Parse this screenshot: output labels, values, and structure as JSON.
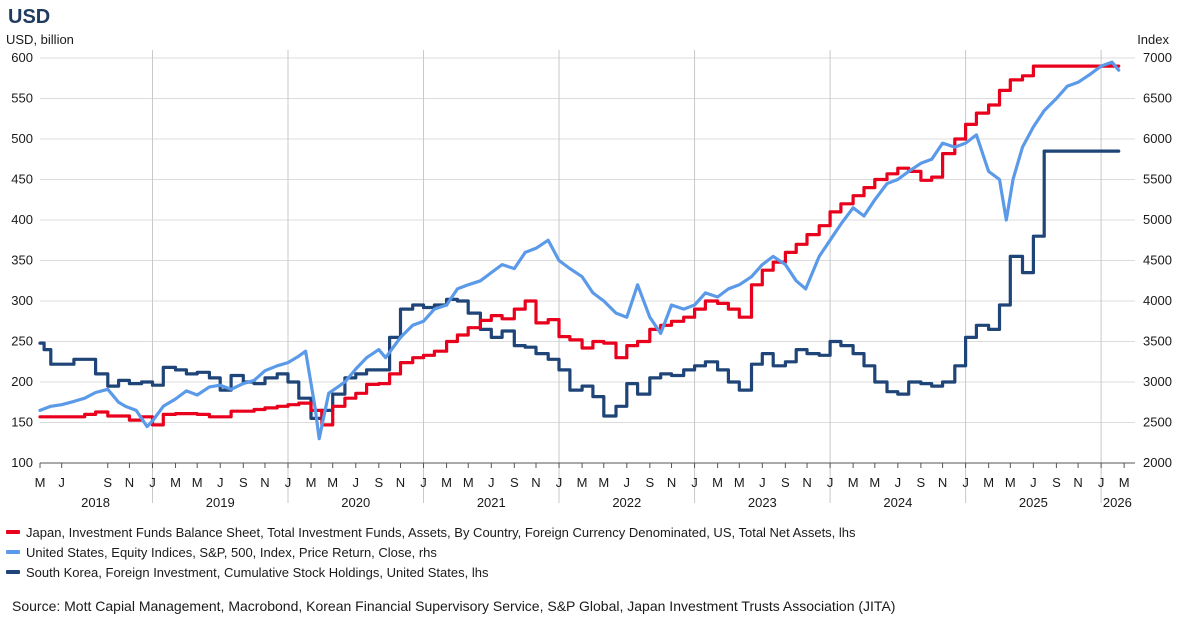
{
  "chart_data": {
    "type": "line",
    "title": "USD",
    "ylabel": "USD, billion",
    "y2label": "Index",
    "ylim": [
      100,
      600
    ],
    "y2lim": [
      2000,
      7000
    ],
    "yticks": [
      100,
      150,
      200,
      250,
      300,
      350,
      400,
      450,
      500,
      550,
      600
    ],
    "y2ticks": [
      2000,
      2500,
      3000,
      3500,
      4000,
      4500,
      5000,
      5500,
      6000,
      6500,
      7000
    ],
    "xlim": [
      2018.17,
      2026.25
    ],
    "grid": true,
    "month_ticks": [
      {
        "label": "M",
        "x": 2018.17
      },
      {
        "label": "J",
        "x": 2018.33
      },
      {
        "label": "S",
        "x": 2018.67
      },
      {
        "label": "N",
        "x": 2018.83
      },
      {
        "label": "J",
        "x": 2019.0
      },
      {
        "label": "M",
        "x": 2019.17
      },
      {
        "label": "M",
        "x": 2019.33
      },
      {
        "label": "J",
        "x": 2019.5
      },
      {
        "label": "S",
        "x": 2019.67
      },
      {
        "label": "N",
        "x": 2019.83
      },
      {
        "label": "J",
        "x": 2020.0
      },
      {
        "label": "M",
        "x": 2020.17
      },
      {
        "label": "M",
        "x": 2020.33
      },
      {
        "label": "J",
        "x": 2020.5
      },
      {
        "label": "S",
        "x": 2020.67
      },
      {
        "label": "N",
        "x": 2020.83
      },
      {
        "label": "J",
        "x": 2021.0
      },
      {
        "label": "M",
        "x": 2021.17
      },
      {
        "label": "M",
        "x": 2021.33
      },
      {
        "label": "J",
        "x": 2021.5
      },
      {
        "label": "S",
        "x": 2021.67
      },
      {
        "label": "N",
        "x": 2021.83
      },
      {
        "label": "J",
        "x": 2022.0
      },
      {
        "label": "M",
        "x": 2022.17
      },
      {
        "label": "M",
        "x": 2022.33
      },
      {
        "label": "J",
        "x": 2022.5
      },
      {
        "label": "S",
        "x": 2022.67
      },
      {
        "label": "N",
        "x": 2022.83
      },
      {
        "label": "J",
        "x": 2023.0
      },
      {
        "label": "M",
        "x": 2023.17
      },
      {
        "label": "M",
        "x": 2023.33
      },
      {
        "label": "J",
        "x": 2023.5
      },
      {
        "label": "S",
        "x": 2023.67
      },
      {
        "label": "N",
        "x": 2023.83
      },
      {
        "label": "J",
        "x": 2024.0
      },
      {
        "label": "M",
        "x": 2024.17
      },
      {
        "label": "M",
        "x": 2024.33
      },
      {
        "label": "J",
        "x": 2024.5
      },
      {
        "label": "S",
        "x": 2024.67
      },
      {
        "label": "N",
        "x": 2024.83
      },
      {
        "label": "J",
        "x": 2025.0
      },
      {
        "label": "M",
        "x": 2025.17
      },
      {
        "label": "M",
        "x": 2025.33
      },
      {
        "label": "J",
        "x": 2025.5
      },
      {
        "label": "S",
        "x": 2025.67
      },
      {
        "label": "N",
        "x": 2025.83
      },
      {
        "label": "J",
        "x": 2026.0
      },
      {
        "label": "M",
        "x": 2026.17
      }
    ],
    "year_labels": [
      {
        "label": "2018",
        "x": 2018.58
      },
      {
        "label": "2019",
        "x": 2019.5
      },
      {
        "label": "2020",
        "x": 2020.5
      },
      {
        "label": "2021",
        "x": 2021.5
      },
      {
        "label": "2022",
        "x": 2022.5
      },
      {
        "label": "2023",
        "x": 2023.5
      },
      {
        "label": "2024",
        "x": 2024.5
      },
      {
        "label": "2025",
        "x": 2025.5
      },
      {
        "label": "2026",
        "x": 2026.12
      }
    ],
    "year_gridlines": [
      2019.0,
      2020.0,
      2021.0,
      2022.0,
      2023.0,
      2024.0,
      2025.0,
      2026.0
    ],
    "series": [
      {
        "name": "Japan, Investment Funds Balance Sheet, Total Investment Funds, Assets, By Country, Foreign Currency Denominated, US, Total Net Assets, lhs",
        "axis": "left",
        "color": "#e8001c",
        "step": true,
        "x": [
          2018.17,
          2018.5,
          2018.58,
          2018.67,
          2018.83,
          2018.92,
          2019.0,
          2019.08,
          2019.17,
          2019.33,
          2019.42,
          2019.58,
          2019.67,
          2019.75,
          2019.83,
          2019.92,
          2020.0,
          2020.08,
          2020.17,
          2020.25,
          2020.33,
          2020.42,
          2020.5,
          2020.58,
          2020.67,
          2020.75,
          2020.83,
          2020.92,
          2021.0,
          2021.08,
          2021.17,
          2021.25,
          2021.33,
          2021.42,
          2021.5,
          2021.58,
          2021.67,
          2021.75,
          2021.83,
          2021.92,
          2022.0,
          2022.08,
          2022.17,
          2022.25,
          2022.33,
          2022.42,
          2022.5,
          2022.58,
          2022.67,
          2022.75,
          2022.83,
          2022.92,
          2023.0,
          2023.08,
          2023.17,
          2023.25,
          2023.33,
          2023.42,
          2023.5,
          2023.58,
          2023.67,
          2023.75,
          2023.83,
          2023.92,
          2024.0,
          2024.08,
          2024.17,
          2024.25,
          2024.33,
          2024.42,
          2024.5,
          2024.58,
          2024.67,
          2024.75,
          2024.83,
          2024.92,
          2025.0,
          2025.08,
          2025.17,
          2025.25,
          2025.33,
          2025.42,
          2025.5,
          2025.58,
          2025.67,
          2025.75,
          2025.83,
          2025.92,
          2026.0,
          2026.08,
          2026.13
        ],
        "values": [
          157,
          160,
          163,
          158,
          153,
          157,
          147,
          160,
          161,
          160,
          157,
          164,
          164,
          166,
          168,
          170,
          172,
          174,
          165,
          147,
          170,
          180,
          186,
          197,
          198,
          210,
          224,
          230,
          233,
          238,
          250,
          258,
          267,
          276,
          282,
          278,
          290,
          300,
          273,
          277,
          256,
          252,
          242,
          250,
          248,
          230,
          245,
          250,
          265,
          270,
          275,
          280,
          290,
          300,
          297,
          290,
          280,
          320,
          338,
          348,
          360,
          370,
          382,
          393,
          410,
          420,
          430,
          440,
          450,
          457,
          464,
          460,
          449,
          453,
          482,
          500,
          518,
          532,
          542,
          560,
          573,
          578,
          590,
          590,
          590,
          590,
          590,
          590,
          590,
          590,
          590
        ]
      },
      {
        "name": "United States, Equity Indices, S&P, 500, Index, Price Return, Close, rhs",
        "axis": "right",
        "color": "#5b9ae8",
        "step": false,
        "x": [
          2018.17,
          2018.25,
          2018.33,
          2018.42,
          2018.5,
          2018.58,
          2018.67,
          2018.75,
          2018.8,
          2018.88,
          2018.96,
          2019.0,
          2019.08,
          2019.17,
          2019.25,
          2019.33,
          2019.42,
          2019.5,
          2019.58,
          2019.67,
          2019.75,
          2019.83,
          2019.92,
          2020.0,
          2020.08,
          2020.13,
          2020.2,
          2020.23,
          2020.3,
          2020.42,
          2020.5,
          2020.58,
          2020.67,
          2020.72,
          2020.83,
          2020.92,
          2021.0,
          2021.08,
          2021.17,
          2021.25,
          2021.33,
          2021.42,
          2021.5,
          2021.58,
          2021.67,
          2021.75,
          2021.83,
          2021.92,
          2022.0,
          2022.08,
          2022.17,
          2022.25,
          2022.33,
          2022.42,
          2022.5,
          2022.58,
          2022.67,
          2022.75,
          2022.83,
          2022.92,
          2023.0,
          2023.08,
          2023.17,
          2023.25,
          2023.33,
          2023.42,
          2023.5,
          2023.58,
          2023.67,
          2023.75,
          2023.82,
          2023.92,
          2024.0,
          2024.08,
          2024.17,
          2024.25,
          2024.33,
          2024.42,
          2024.5,
          2024.58,
          2024.67,
          2024.75,
          2024.83,
          2024.92,
          2025.0,
          2025.08,
          2025.17,
          2025.25,
          2025.3,
          2025.35,
          2025.42,
          2025.5,
          2025.58,
          2025.67,
          2025.75,
          2025.83,
          2025.92,
          2026.0,
          2026.08,
          2026.13
        ],
        "values": [
          2650,
          2700,
          2720,
          2760,
          2800,
          2870,
          2910,
          2750,
          2700,
          2650,
          2450,
          2520,
          2700,
          2790,
          2890,
          2840,
          2940,
          2960,
          2910,
          2980,
          3020,
          3140,
          3200,
          3240,
          3320,
          3380,
          2680,
          2300,
          2860,
          3000,
          3160,
          3300,
          3400,
          3300,
          3550,
          3700,
          3750,
          3900,
          3950,
          4150,
          4200,
          4250,
          4350,
          4450,
          4400,
          4600,
          4650,
          4750,
          4500,
          4400,
          4300,
          4100,
          4000,
          3850,
          3800,
          4200,
          3800,
          3600,
          3950,
          3900,
          3950,
          4100,
          4050,
          4150,
          4200,
          4300,
          4450,
          4550,
          4450,
          4250,
          4150,
          4550,
          4750,
          4950,
          5150,
          5050,
          5250,
          5450,
          5500,
          5600,
          5700,
          5750,
          5950,
          5900,
          5950,
          6050,
          5600,
          5500,
          5000,
          5500,
          5900,
          6150,
          6350,
          6500,
          6650,
          6700,
          6800,
          6900,
          6950,
          6850
        ]
      },
      {
        "name": "South Korea, Foreign Investment, Cumulative Stock Holdings, United States, lhs",
        "axis": "left",
        "color": "#1f4477",
        "step": true,
        "x": [
          2018.17,
          2018.2,
          2018.25,
          2018.42,
          2018.58,
          2018.67,
          2018.75,
          2018.83,
          2018.92,
          2019.0,
          2019.08,
          2019.17,
          2019.25,
          2019.33,
          2019.42,
          2019.5,
          2019.58,
          2019.67,
          2019.75,
          2019.83,
          2019.92,
          2020.0,
          2020.08,
          2020.17,
          2020.25,
          2020.33,
          2020.42,
          2020.5,
          2020.58,
          2020.67,
          2020.75,
          2020.83,
          2020.92,
          2021.0,
          2021.08,
          2021.17,
          2021.25,
          2021.33,
          2021.42,
          2021.5,
          2021.58,
          2021.67,
          2021.75,
          2021.83,
          2021.92,
          2022.0,
          2022.08,
          2022.17,
          2022.25,
          2022.33,
          2022.42,
          2022.5,
          2022.58,
          2022.67,
          2022.75,
          2022.83,
          2022.92,
          2023.0,
          2023.08,
          2023.17,
          2023.25,
          2023.33,
          2023.42,
          2023.5,
          2023.58,
          2023.67,
          2023.75,
          2023.83,
          2023.92,
          2024.0,
          2024.08,
          2024.17,
          2024.25,
          2024.33,
          2024.42,
          2024.5,
          2024.58,
          2024.67,
          2024.75,
          2024.83,
          2024.92,
          2025.0,
          2025.08,
          2025.17,
          2025.25,
          2025.33,
          2025.42,
          2025.5,
          2025.58,
          2025.67,
          2025.75,
          2025.83,
          2025.92,
          2026.0,
          2026.08,
          2026.13
        ],
        "values": [
          248,
          240,
          222,
          228,
          210,
          195,
          202,
          198,
          200,
          196,
          218,
          215,
          210,
          212,
          205,
          190,
          208,
          200,
          198,
          205,
          210,
          200,
          180,
          155,
          165,
          185,
          205,
          210,
          215,
          215,
          255,
          290,
          295,
          292,
          295,
          302,
          300,
          285,
          265,
          255,
          263,
          245,
          243,
          235,
          228,
          215,
          190,
          195,
          182,
          158,
          170,
          198,
          185,
          205,
          210,
          208,
          215,
          220,
          225,
          215,
          200,
          190,
          222,
          235,
          220,
          225,
          240,
          235,
          233,
          250,
          245,
          235,
          220,
          200,
          188,
          185,
          200,
          198,
          195,
          200,
          220,
          255,
          270,
          265,
          295,
          355,
          335,
          380,
          485,
          485,
          485,
          485,
          485,
          485,
          485,
          485
        ]
      }
    ]
  },
  "title": "USD",
  "unit_left": "USD, billion",
  "unit_right": "Index",
  "legend": [
    {
      "label": "Japan, Investment Funds Balance Sheet, Total Investment Funds, Assets, By Country, Foreign Currency Denominated, US, Total Net Assets, lhs",
      "color": "#e8001c"
    },
    {
      "label": "United States, Equity Indices, S&P, 500, Index, Price Return, Close, rhs",
      "color": "#5b9ae8"
    },
    {
      "label": "South Korea, Foreign Investment, Cumulative Stock Holdings, United States, lhs",
      "color": "#1f4477"
    }
  ],
  "source": "Source: Mott Capial Management, Macrobond, Korean Financial Supervisory Service, S&P Global, Japan Investment Trusts Association (JITA)"
}
